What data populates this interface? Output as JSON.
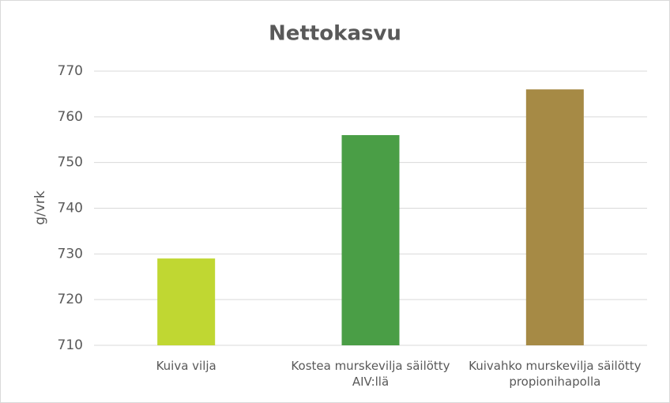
{
  "chart_data": {
    "type": "bar",
    "title": "Nettokasvu",
    "y_label": "g/vrk",
    "categories": [
      "Kuiva vilja",
      "Kostea murskevilja säilötty AIV:llä",
      "Kuivahko murskevilja säilötty propionihapolla"
    ],
    "values": [
      729,
      756,
      766
    ],
    "colors": [
      "#c0d732",
      "#4a9e46",
      "#a68a45"
    ],
    "ylim": [
      710,
      770
    ],
    "yticks": [
      710,
      720,
      730,
      740,
      750,
      760,
      770
    ],
    "grid": true
  }
}
